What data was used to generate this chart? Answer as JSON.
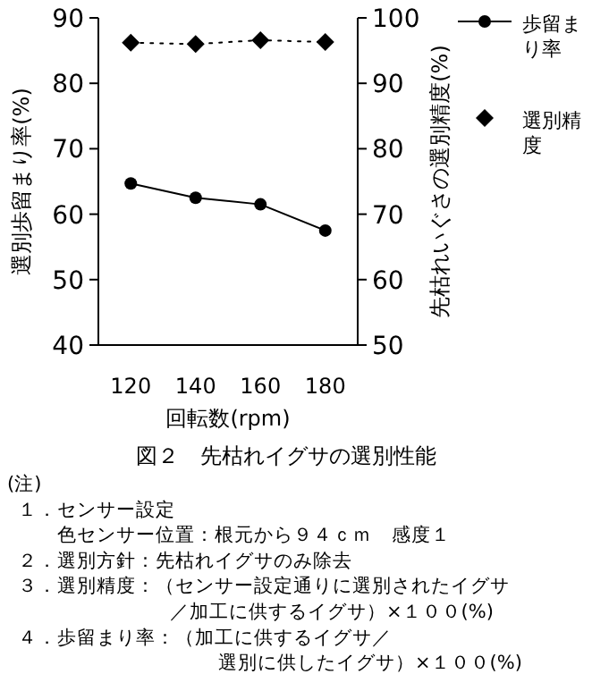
{
  "chart_data": {
    "type": "line",
    "title": "図２　先枯れイグサの選別性能",
    "xlabel": "回転数(rpm)",
    "ylabel": "選別歩留まり率(%)",
    "y2label": "先枯れいぐさの選別精度(%)",
    "categories": [
      "120",
      "140",
      "160",
      "180"
    ],
    "series": [
      {
        "name": "歩留まり率",
        "color": "#000000",
        "values": [
          64.7,
          62.5,
          61.5,
          57.5
        ],
        "marker": "circle",
        "line_style": "solid"
      },
      {
        "name": "選別精度",
        "color": "#000000",
        "values": [
          96.2,
          96.0,
          96.6,
          96.3
        ],
        "axis": "y2",
        "marker": "diamond",
        "line_style": "dotted"
      }
    ],
    "ylim": [
      40,
      90
    ],
    "yticks": [
      40,
      50,
      60,
      70,
      80,
      90
    ],
    "y2lim": [
      50,
      100
    ],
    "y2ticks": [
      50,
      60,
      70,
      80,
      90,
      100
    ],
    "legend": "top right",
    "grid": false,
    "annotations": [
      "(注)",
      "１．センサー設定",
      "色センサー位置：根元から９４ｃｍ　感度１",
      "２．選別方針：先枯れイグサのみ除去",
      "３．選別精度：（センサー設定通りに選別されたイグサ",
      "／加工に供するイグサ）×１００(%)",
      "４．歩留まり率：（加工に供するイグサ／",
      "選別に供したイグサ）×１００(%)"
    ]
  }
}
